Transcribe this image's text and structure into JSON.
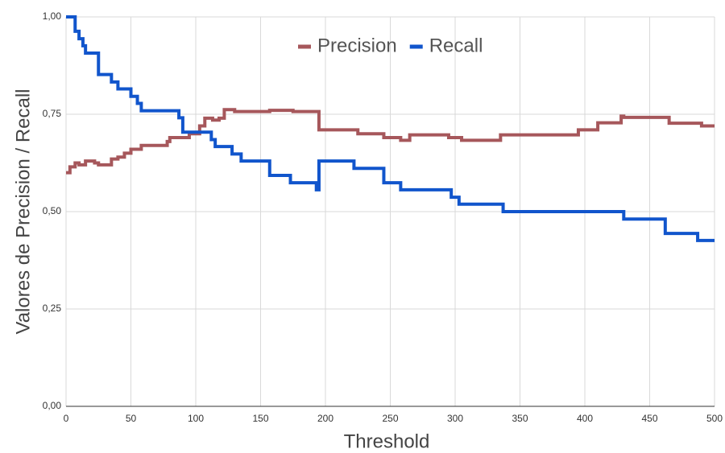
{
  "chart_data": {
    "type": "line",
    "step": true,
    "xlabel": "Threshold",
    "ylabel": "Valores de Precision / Recall",
    "xlim": [
      0,
      500
    ],
    "xticks": [
      0,
      50,
      100,
      150,
      200,
      250,
      300,
      350,
      400,
      450,
      500
    ],
    "ylim": [
      0,
      1
    ],
    "yticks": [
      {
        "value": 0,
        "label": "0,00"
      },
      {
        "value": 0.25,
        "label": "0,25"
      },
      {
        "value": 0.5,
        "label": "0,50"
      },
      {
        "value": 0.75,
        "label": "0,75"
      },
      {
        "value": 1,
        "label": "1,00"
      }
    ],
    "grid": true,
    "legend": "top",
    "series": [
      {
        "name": "Precision",
        "color": "#a6575b",
        "x": [
          0,
          3,
          7,
          10,
          15,
          22,
          25,
          35,
          40,
          45,
          50,
          55,
          58,
          78,
          80,
          95,
          100,
          103,
          107,
          113,
          118,
          122,
          130,
          157,
          175,
          195,
          225,
          245,
          258,
          265,
          295,
          305,
          335,
          395,
          410,
          428,
          430,
          465,
          490,
          500
        ],
        "values": [
          0.6,
          0.615,
          0.625,
          0.62,
          0.63,
          0.625,
          0.62,
          0.635,
          0.64,
          0.65,
          0.66,
          0.66,
          0.67,
          0.68,
          0.69,
          0.7,
          0.7,
          0.72,
          0.74,
          0.735,
          0.74,
          0.762,
          0.757,
          0.76,
          0.757,
          0.71,
          0.7,
          0.69,
          0.683,
          0.697,
          0.69,
          0.683,
          0.697,
          0.71,
          0.728,
          0.745,
          0.742,
          0.727,
          0.72,
          0.72
        ]
      },
      {
        "name": "Recall",
        "color": "#1155cc",
        "x": [
          0,
          7,
          10,
          13,
          15,
          25,
          35,
          40,
          50,
          55,
          58,
          87,
          90,
          112,
          115,
          128,
          135,
          157,
          173,
          193,
          195,
          222,
          245,
          258,
          297,
          303,
          337,
          430,
          462,
          487,
          500
        ],
        "values": [
          1.0,
          0.963,
          0.944,
          0.926,
          0.907,
          0.852,
          0.833,
          0.815,
          0.796,
          0.778,
          0.759,
          0.741,
          0.704,
          0.685,
          0.667,
          0.648,
          0.63,
          0.593,
          0.574,
          0.556,
          0.63,
          0.611,
          0.574,
          0.556,
          0.537,
          0.519,
          0.5,
          0.481,
          0.444,
          0.426,
          0.426
        ]
      }
    ]
  }
}
